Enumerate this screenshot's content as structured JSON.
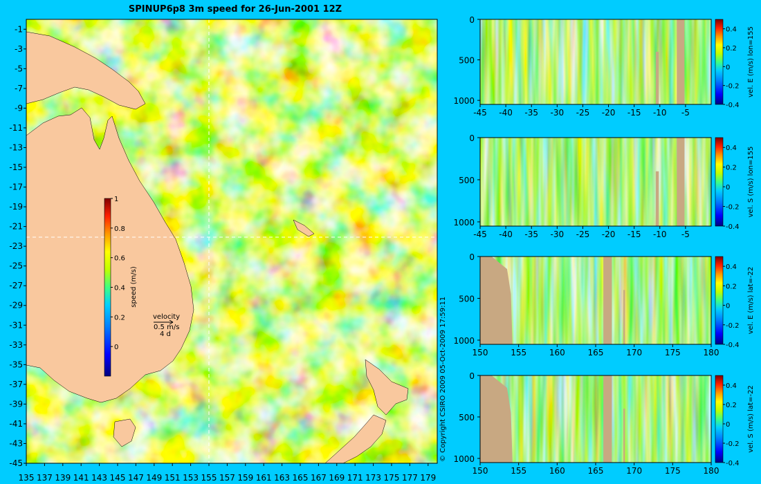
{
  "title": "SPINUP6p8 3m speed for 26-Jun-2001 12Z",
  "copyright": "© Copyright CSIRO 2009   05-Oct-2009 17:59:11",
  "colors": {
    "background": "#00ccff",
    "land": "#f9c89e",
    "section_land": "#c8a882",
    "ref_line": "#ffffff",
    "colormap": [
      "#00007f",
      "#0000ff",
      "#0080ff",
      "#00d0ff",
      "#40ff80",
      "#c0ff00",
      "#ffff00",
      "#ff9900",
      "#ff2000",
      "#800000"
    ]
  },
  "chart_data": [
    {
      "type": "heatmap",
      "subtype": "map",
      "title": "SPINUP6p8 3m speed for 26-Jun-2001 12Z",
      "xlabel": "",
      "ylabel": "",
      "xlim": [
        135,
        180
      ],
      "ylim": [
        -45,
        0
      ],
      "xticks": [
        135,
        137,
        139,
        141,
        143,
        145,
        147,
        149,
        151,
        153,
        155,
        157,
        159,
        161,
        163,
        165,
        167,
        169,
        171,
        173,
        175,
        177,
        179
      ],
      "yticks": [
        -1,
        -3,
        -5,
        -7,
        -9,
        -11,
        -13,
        -15,
        -17,
        -19,
        -21,
        -23,
        -25,
        -27,
        -29,
        -31,
        -33,
        -35,
        -37,
        -39,
        -41,
        -43,
        -45
      ],
      "ref_lon": 155,
      "ref_lat": -22,
      "colorbar": {
        "label": "speed (m/s)",
        "range": [
          -0.2,
          1
        ],
        "ticks": [
          0,
          0.2,
          0.4,
          0.6,
          0.8,
          1
        ]
      },
      "velocity_key": {
        "label": "velocity",
        "speed": "0.5 m/s",
        "duration": "4 d"
      }
    },
    {
      "type": "heatmap",
      "subtype": "vertical_section",
      "xlim": [
        -45,
        0
      ],
      "ylim": [
        1050,
        0
      ],
      "xticks": [
        -45,
        -40,
        -35,
        -30,
        -25,
        -20,
        -15,
        -10,
        -5
      ],
      "yticks": [
        0,
        500,
        1000
      ],
      "colorbar": {
        "label": "vel. E (m/s) lon=155",
        "range": [
          -0.4,
          0.5
        ],
        "ticks": [
          -0.4,
          -0.2,
          0,
          0.2,
          0.4
        ]
      }
    },
    {
      "type": "heatmap",
      "subtype": "vertical_section",
      "xlim": [
        -45,
        0
      ],
      "ylim": [
        1050,
        0
      ],
      "xticks": [
        -45,
        -40,
        -35,
        -30,
        -25,
        -20,
        -15,
        -10,
        -5
      ],
      "yticks": [
        0,
        500,
        1000
      ],
      "colorbar": {
        "label": "vel. S (m/s) lon=155",
        "range": [
          -0.4,
          0.5
        ],
        "ticks": [
          -0.4,
          -0.2,
          0,
          0.2,
          0.4
        ]
      }
    },
    {
      "type": "heatmap",
      "subtype": "vertical_section",
      "xlim": [
        150,
        180
      ],
      "ylim": [
        1050,
        0
      ],
      "xticks": [
        150,
        155,
        160,
        165,
        170,
        175,
        180
      ],
      "yticks": [
        0,
        500,
        1000
      ],
      "colorbar": {
        "label": "vel. E (m/s) lat=-22",
        "range": [
          -0.4,
          0.5
        ],
        "ticks": [
          -0.4,
          -0.2,
          0,
          0.2,
          0.4
        ]
      }
    },
    {
      "type": "heatmap",
      "subtype": "vertical_section",
      "xlim": [
        150,
        180
      ],
      "ylim": [
        1050,
        0
      ],
      "xticks": [
        150,
        155,
        160,
        165,
        170,
        175,
        180
      ],
      "yticks": [
        0,
        500,
        1000
      ],
      "colorbar": {
        "label": "vel. S (m/s) lat=-22",
        "range": [
          -0.4,
          0.5
        ],
        "ticks": [
          -0.4,
          -0.2,
          0,
          0.2,
          0.4
        ]
      }
    }
  ]
}
